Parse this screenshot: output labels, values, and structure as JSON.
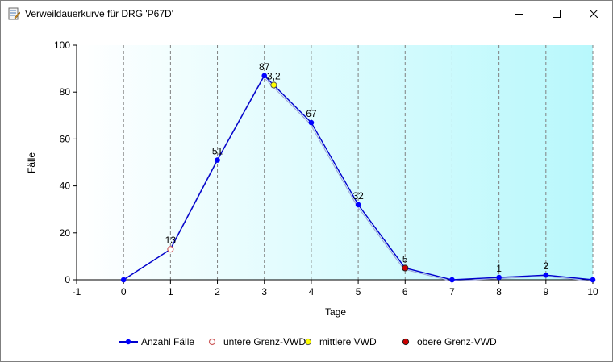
{
  "window": {
    "title": "Verweildauerkurve für DRG 'P67D'",
    "icons": {
      "app": "chart-document-icon",
      "minimize": "minimize-icon",
      "maximize": "maximize-icon",
      "close": "close-icon"
    }
  },
  "colors": {
    "line": "#0000cd",
    "marker": "#0000ff",
    "lower_marker_edge": "#cd5c5c",
    "mid_marker_fill": "#ffff00",
    "upper_marker_fill": "#cc0000",
    "background_start": "#ffffff",
    "background_end": "#b8f8fc",
    "grid": "#808080"
  },
  "chart_data": {
    "type": "line",
    "title": "",
    "xlabel": "Tage",
    "ylabel": "Fälle",
    "xlim": [
      -1,
      10
    ],
    "ylim": [
      0,
      100
    ],
    "x_ticks": [
      "-1",
      "0",
      "1",
      "2",
      "3",
      "4",
      "5",
      "6",
      "7",
      "8",
      "9",
      "10"
    ],
    "y_ticks": [
      "0",
      "20",
      "40",
      "60",
      "80",
      "100"
    ],
    "grid": "vertical dashed",
    "legend_position": "bottom",
    "series": [
      {
        "name": "Anzahl Fälle",
        "x": [
          0,
          1,
          2,
          3,
          4,
          5,
          6,
          7,
          8,
          9,
          10
        ],
        "y": [
          0,
          13,
          51,
          87,
          67,
          32,
          5,
          0,
          1,
          2,
          0
        ],
        "labels": [
          "",
          "13",
          "51",
          "87",
          "67",
          "32",
          "5",
          "",
          "1",
          "2",
          ""
        ]
      },
      {
        "name": "untere Grenz-VWD",
        "x": [
          1
        ],
        "y": [
          13
        ]
      },
      {
        "name": "mittlere VWD",
        "x": [
          3.2
        ],
        "y": [
          83
        ],
        "labels": [
          "3,2"
        ]
      },
      {
        "name": "obere Grenz-VWD",
        "x": [
          6
        ],
        "y": [
          5
        ]
      }
    ]
  }
}
